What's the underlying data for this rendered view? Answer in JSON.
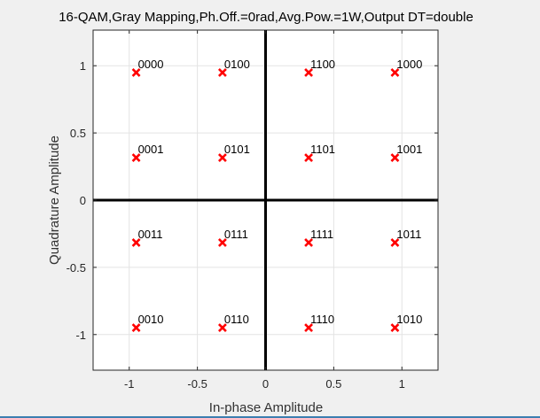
{
  "chart_data": {
    "type": "scatter",
    "title": "16-QAM,Gray Mapping,Ph.Off.=0rad,Avg.Pow.=1W,Output DT=double",
    "xlabel": "In-phase Amplitude",
    "ylabel": "Quadrature Amplitude",
    "xlim": [
      -1.265,
      1.265
    ],
    "ylim": [
      -1.265,
      1.265
    ],
    "xticks": [
      -1,
      -0.5,
      0,
      0.5,
      1
    ],
    "xtick_labels": [
      "-1",
      "-0.5",
      "0",
      "0.5",
      "1"
    ],
    "yticks": [
      -1,
      -0.5,
      0,
      0.5,
      1
    ],
    "ytick_labels": [
      "-1",
      "-0.5",
      "0",
      "0.5",
      "1"
    ],
    "grid": true,
    "marker": "x",
    "marker_color": "#ff0000",
    "axis_line_color": "#000000",
    "points": [
      {
        "x": -0.949,
        "y": 0.949,
        "label": "0000"
      },
      {
        "x": -0.316,
        "y": 0.949,
        "label": "0100"
      },
      {
        "x": 0.316,
        "y": 0.949,
        "label": "1100"
      },
      {
        "x": 0.949,
        "y": 0.949,
        "label": "1000"
      },
      {
        "x": -0.949,
        "y": 0.316,
        "label": "0001"
      },
      {
        "x": -0.316,
        "y": 0.316,
        "label": "0101"
      },
      {
        "x": 0.316,
        "y": 0.316,
        "label": "1101"
      },
      {
        "x": 0.949,
        "y": 0.316,
        "label": "1001"
      },
      {
        "x": -0.949,
        "y": -0.316,
        "label": "0011"
      },
      {
        "x": -0.316,
        "y": -0.316,
        "label": "0111"
      },
      {
        "x": 0.316,
        "y": -0.316,
        "label": "1111"
      },
      {
        "x": 0.949,
        "y": -0.316,
        "label": "1011"
      },
      {
        "x": -0.949,
        "y": -0.949,
        "label": "0010"
      },
      {
        "x": -0.316,
        "y": -0.949,
        "label": "0110"
      },
      {
        "x": 0.316,
        "y": -0.949,
        "label": "1110"
      },
      {
        "x": 0.949,
        "y": -0.949,
        "label": "1010"
      }
    ]
  }
}
